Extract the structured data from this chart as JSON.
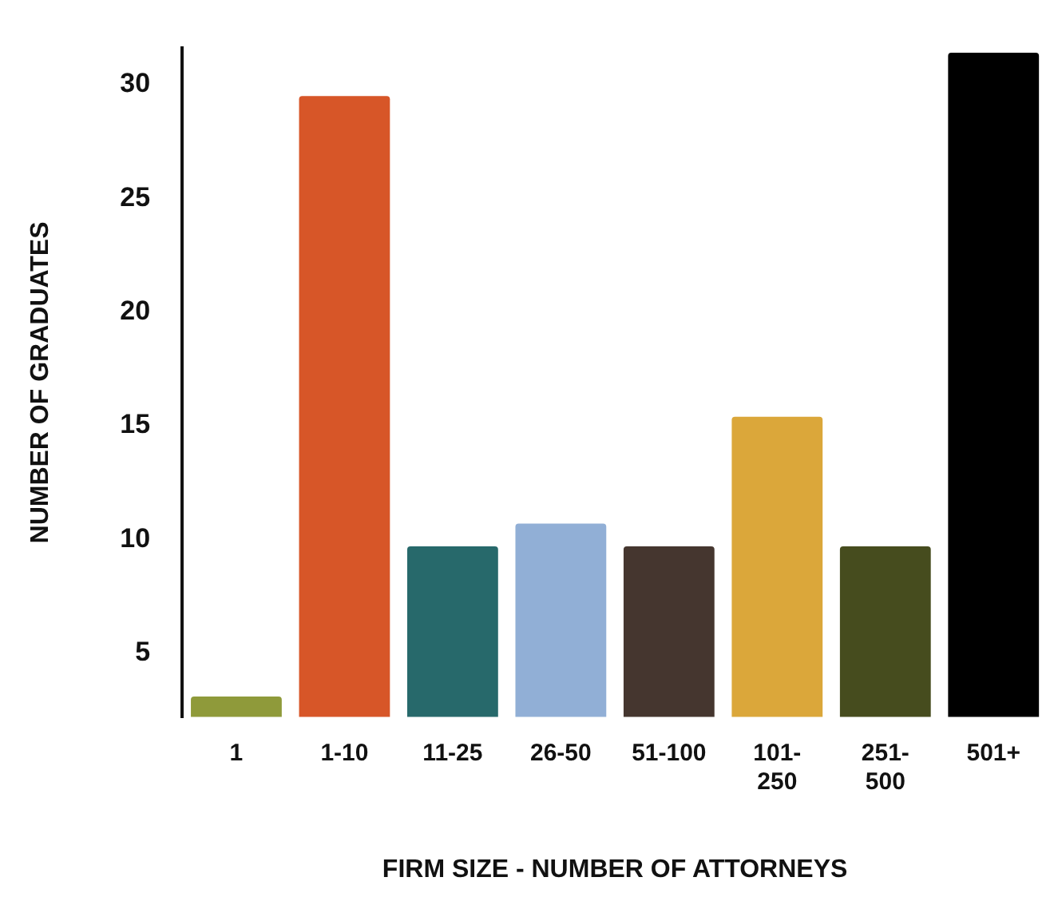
{
  "chart_data": {
    "type": "bar",
    "xlabel": "FIRM SIZE - NUMBER OF ATTORNEYS",
    "ylabel": "NUMBER OF GRADUATES",
    "categories": [
      "1",
      "1-10",
      "11-25",
      "26-50",
      "51-100",
      "101-250",
      "251-500",
      "501+"
    ],
    "values": [
      3.1,
      29.5,
      9.7,
      10.7,
      9.7,
      15.4,
      9.7,
      31.4
    ],
    "colors": [
      "#8f9a3a",
      "#d75628",
      "#27696b",
      "#91afd6",
      "#45362f",
      "#dba73a",
      "#464c1e",
      "#000000"
    ],
    "ylim": [
      2.2,
      31.6
    ],
    "yticks": [
      5,
      10,
      15,
      20,
      25,
      30
    ],
    "grid": false,
    "legend": false
  }
}
